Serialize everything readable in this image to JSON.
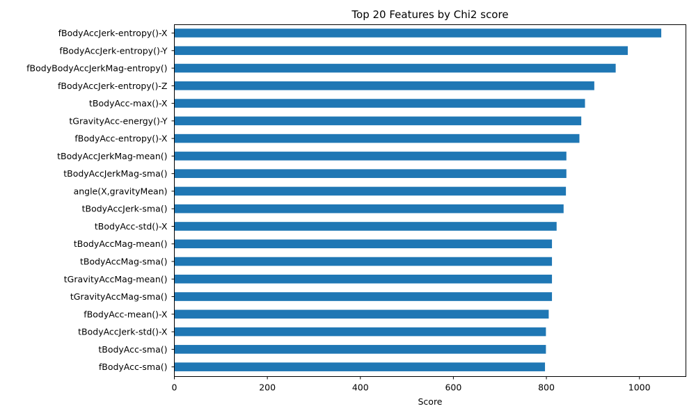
{
  "chart_data": {
    "type": "bar",
    "orientation": "horizontal",
    "title": "Top 20 Features by Chi2 score",
    "xlabel": "Score",
    "ylabel": "",
    "xlim": [
      0,
      1100
    ],
    "xticks": [
      0,
      200,
      400,
      600,
      800,
      1000
    ],
    "grid": false,
    "bar_color": "#1f77b4",
    "categories": [
      "fBodyAccJerk-entropy()-X",
      "fBodyAccJerk-entropy()-Y",
      "fBodyBodyAccJerkMag-entropy()",
      "fBodyAccJerk-entropy()-Z",
      "tBodyAcc-max()-X",
      "tGravityAcc-energy()-Y",
      "fBodyAcc-entropy()-X",
      "tBodyAccJerkMag-mean()",
      "tBodyAccJerkMag-sma()",
      "angle(X,gravityMean)",
      "tBodyAccJerk-sma()",
      "tBodyAcc-std()-X",
      "tBodyAccMag-mean()",
      "tBodyAccMag-sma()",
      "tGravityAccMag-mean()",
      "tGravityAccMag-sma()",
      "fBodyAcc-mean()-X",
      "tBodyAccJerk-std()-X",
      "tBodyAcc-sma()",
      "fBodyAcc-sma()"
    ],
    "values": [
      1047,
      975,
      949,
      903,
      883,
      875,
      871,
      843,
      843,
      842,
      837,
      822,
      812,
      812,
      812,
      812,
      805,
      799,
      799,
      797
    ]
  }
}
